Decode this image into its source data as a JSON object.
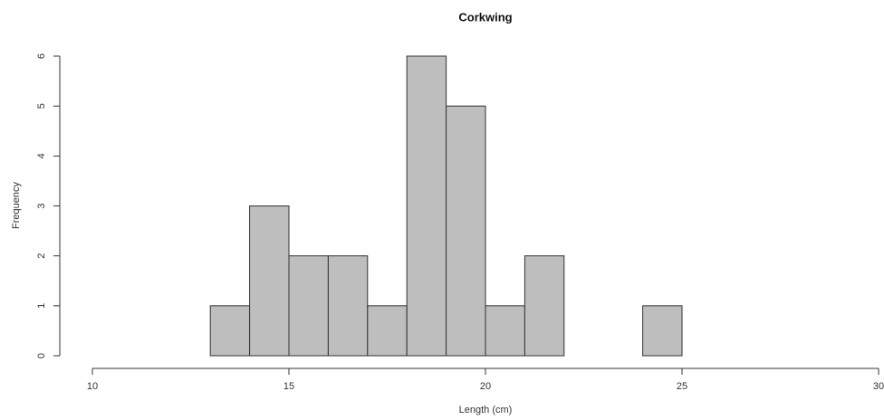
{
  "chart_data": {
    "type": "histogram",
    "title": "Corkwing",
    "x_label": "Length (cm)",
    "y_label": "Frequency",
    "bins": [
      10,
      11,
      12,
      13,
      14,
      15,
      16,
      17,
      18,
      19,
      20,
      21,
      22,
      23,
      24,
      25,
      26,
      27,
      28,
      29
    ],
    "values": [
      0,
      0,
      0,
      1,
      3,
      2,
      2,
      1,
      6,
      5,
      1,
      2,
      0,
      0,
      1,
      0,
      0,
      0,
      0
    ],
    "color": "#bebebe",
    "xlim": [
      10,
      30
    ],
    "xticks": [
      10,
      15,
      20,
      25,
      30
    ],
    "ylim": [
      0,
      6
    ],
    "yticks": [
      0,
      1,
      2,
      3,
      4,
      5,
      6
    ]
  }
}
